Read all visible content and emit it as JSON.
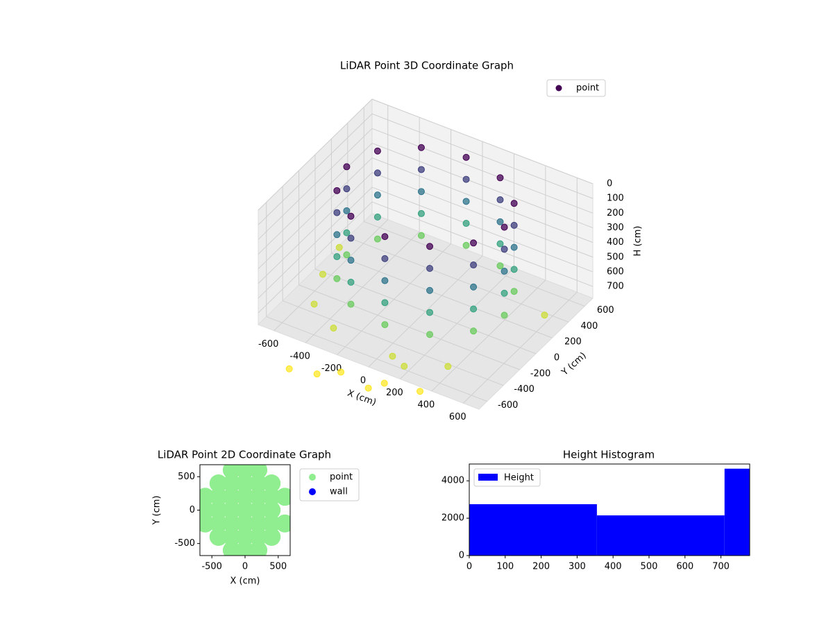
{
  "chart_data": [
    {
      "type": "scatter3d",
      "title": "LiDAR Point 3D Coordinate Graph",
      "xlabel": "X (cm)",
      "ylabel": "Y (cm)",
      "zlabel": "H (cm)",
      "colormap": "viridis",
      "legend": "upper right",
      "xlim": [
        -700,
        700
      ],
      "ylim": [
        -700,
        700
      ],
      "zlim": [
        0,
        780
      ],
      "zinverted": true,
      "xticks": [
        -600,
        -400,
        -200,
        0,
        200,
        400,
        600
      ],
      "yticks": [
        -600,
        -400,
        -200,
        0,
        200,
        400,
        600
      ],
      "zticks": [
        0,
        100,
        200,
        300,
        400,
        500,
        600,
        700
      ],
      "series": [
        {
          "name": "point",
          "color": "#440154",
          "x": [
            500,
            433,
            250,
            0,
            -250,
            -433,
            -500,
            -433,
            -250,
            0,
            250,
            433,
            500,
            433,
            250,
            0,
            -250,
            -433,
            -500,
            -433,
            -250,
            0,
            250,
            433,
            500,
            433,
            250,
            0,
            -250,
            -433,
            -500,
            -433,
            -250,
            0,
            250,
            433,
            500,
            433,
            250,
            0,
            -250,
            -433,
            -500,
            -433,
            -250,
            0,
            250,
            433,
            500,
            433,
            250,
            0,
            -250,
            -433,
            -500,
            -433,
            -250,
            0,
            250,
            433,
            -600,
            -650,
            -300,
            100,
            400,
            600,
            -500,
            200,
            -150,
            50,
            -400,
            100,
            -250,
            300
          ],
          "y": [
            0,
            250,
            433,
            500,
            433,
            250,
            0,
            -250,
            -433,
            -500,
            -433,
            -250,
            0,
            250,
            433,
            500,
            433,
            250,
            0,
            -250,
            -433,
            -500,
            -433,
            -250,
            0,
            250,
            433,
            500,
            433,
            250,
            0,
            -250,
            -433,
            -500,
            -433,
            -250,
            0,
            250,
            433,
            500,
            433,
            250,
            0,
            -250,
            -433,
            -500,
            -433,
            -250,
            0,
            250,
            433,
            500,
            433,
            250,
            0,
            -250,
            -433,
            -500,
            -433,
            -250,
            -100,
            200,
            -550,
            -600,
            -500,
            300,
            -400,
            -650,
            -750,
            -800,
            -900,
            -700,
            -850,
            -650
          ],
          "z": [
            0,
            0,
            0,
            0,
            0,
            0,
            0,
            0,
            0,
            0,
            0,
            0,
            150,
            150,
            150,
            150,
            150,
            150,
            150,
            150,
            150,
            150,
            150,
            150,
            300,
            300,
            300,
            300,
            300,
            300,
            300,
            300,
            300,
            300,
            300,
            300,
            450,
            450,
            450,
            450,
            450,
            450,
            450,
            450,
            450,
            450,
            450,
            450,
            600,
            600,
            600,
            600,
            600,
            600,
            600,
            600,
            600,
            600,
            600,
            600,
            720,
            720,
            720,
            720,
            720,
            720,
            720,
            720,
            850,
            850,
            850,
            850,
            850,
            850
          ]
        }
      ]
    },
    {
      "type": "scatter",
      "title": "LiDAR Point 2D Coordinate Graph",
      "xlabel": "X (cm)",
      "ylabel": "Y (cm)",
      "legend": "outside right",
      "xlim": [
        -680,
        680
      ],
      "ylim": [
        -680,
        680
      ],
      "xticks": [
        -500,
        0,
        500
      ],
      "yticks": [
        -500,
        0,
        500
      ],
      "series": [
        {
          "name": "point",
          "color": "#90ee90",
          "x": [
            -200,
            0,
            200,
            -400,
            -200,
            0,
            200,
            400,
            -600,
            -400,
            -200,
            0,
            200,
            400,
            600,
            -600,
            -400,
            -200,
            0,
            200,
            400,
            -600,
            -400,
            -200,
            0,
            200,
            400,
            600,
            -400,
            -200,
            0,
            200,
            400,
            -200,
            0,
            200
          ],
          "y": [
            600,
            600,
            600,
            400,
            400,
            400,
            400,
            400,
            200,
            200,
            200,
            200,
            200,
            200,
            200,
            0,
            0,
            0,
            0,
            0,
            0,
            -200,
            -200,
            -200,
            -200,
            -200,
            -200,
            -200,
            -400,
            -400,
            -400,
            -400,
            -400,
            -600,
            -600,
            -600
          ]
        },
        {
          "name": "wall",
          "color": "#0000ff",
          "x": [],
          "y": []
        }
      ]
    },
    {
      "type": "histogram",
      "title": "Height Histogram",
      "legend": "upper left",
      "series": [
        {
          "name": "Height",
          "color": "#0000ff"
        }
      ],
      "bins": [
        0,
        355,
        710,
        780
      ],
      "counts": [
        2750,
        2150,
        4650
      ],
      "xlim": [
        0,
        780
      ],
      "ylim": [
        0,
        4900
      ],
      "xticks": [
        0,
        100,
        200,
        300,
        400,
        500,
        600,
        700
      ],
      "yticks": [
        0,
        2000,
        4000
      ]
    }
  ]
}
